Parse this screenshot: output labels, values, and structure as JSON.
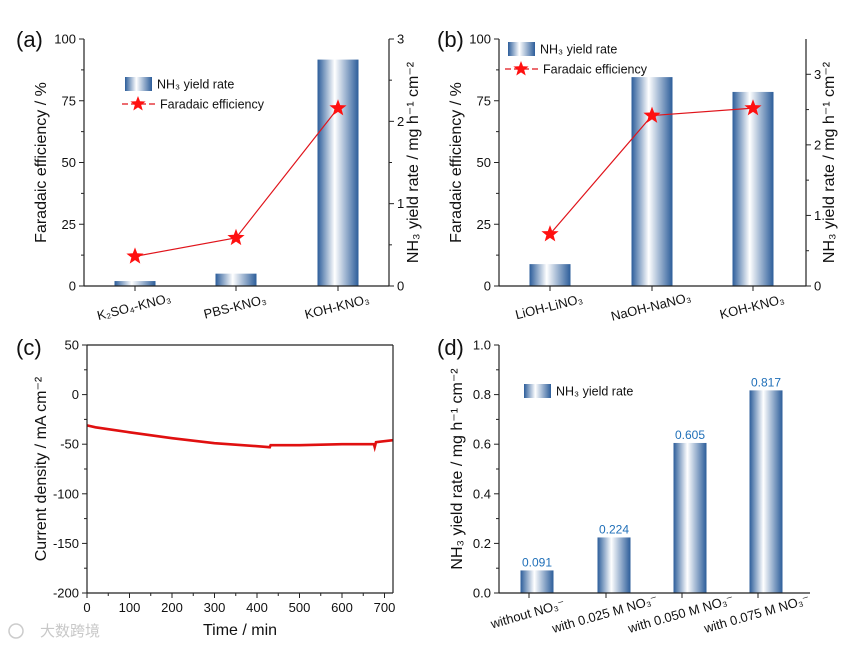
{
  "watermark": "大数跨境",
  "colors": {
    "bar_dark": "#2c5d9a",
    "bar_light": "#ffffff",
    "line": "#e0141b",
    "star": "#ff1010",
    "curve": "#e01010",
    "data_label": "#1f6fb8"
  },
  "chart_data": [
    {
      "panel": "(a)",
      "type": "bar+line",
      "categories": [
        "K₂SO₄-KNO₃",
        "PBS-KNO₃",
        "KOH-KNO₃"
      ],
      "bar_series": {
        "name": "NH₃ yield rate",
        "axis": "right",
        "values": [
          0.06,
          0.15,
          2.75
        ]
      },
      "line_series": {
        "name": "Faradaic efficiency",
        "axis": "left",
        "values": [
          12,
          19.5,
          72
        ]
      },
      "ylabel_left": "Faradaic efficiency / %",
      "ylabel_right": "NH₃ yield rate / mg h⁻¹ cm⁻²",
      "ylim_left": [
        0,
        100
      ],
      "yticks_left": [
        "0",
        "25",
        "50",
        "75",
        "100"
      ],
      "ylim_right": [
        0,
        3
      ],
      "yticks_right": [
        "0",
        "1",
        "2",
        "3"
      ],
      "legend": "top-left"
    },
    {
      "panel": "(b)",
      "type": "bar+line",
      "categories": [
        "LiOH-LiNO₃",
        "NaOH-NaNO₃",
        "KOH-KNO₃"
      ],
      "bar_series": {
        "name": "NH₃ yield rate",
        "axis": "right",
        "values": [
          0.31,
          2.96,
          2.75
        ]
      },
      "line_series": {
        "name": "Faradaic efficiency",
        "axis": "left",
        "values": [
          21,
          69,
          72
        ]
      },
      "ylabel_left": "Faradaic efficiency / %",
      "ylabel_right": "NH₃ yield rate / mg h⁻¹ cm⁻²",
      "ylim_left": [
        0,
        100
      ],
      "yticks_left": [
        "0",
        "25",
        "50",
        "75",
        "100"
      ],
      "ylim_right": [
        0,
        3.5
      ],
      "yticks_right": [
        "0",
        "1",
        "2",
        "3"
      ],
      "legend": "top-left"
    },
    {
      "panel": "(c)",
      "type": "line",
      "xlabel": "Time / min",
      "ylabel": "Current density / mA cm⁻²",
      "xlim": [
        0,
        720
      ],
      "xticks": [
        "0",
        "100",
        "200",
        "300",
        "400",
        "500",
        "600",
        "700"
      ],
      "ylim": [
        -200,
        50
      ],
      "yticks": [
        "-200",
        "-150",
        "-100",
        "-50",
        "0",
        "50"
      ],
      "x": [
        0,
        20,
        100,
        200,
        300,
        400,
        430,
        432,
        500,
        600,
        675,
        677,
        680,
        720
      ],
      "y": [
        -31,
        -33,
        -38,
        -44,
        -49,
        -52,
        -53,
        -51,
        -51,
        -50,
        -50,
        -53,
        -48,
        -46
      ]
    },
    {
      "panel": "(d)",
      "type": "bar",
      "categories": [
        "without NO₃⁻",
        "with 0.025 M NO₃⁻",
        "with 0.050 M NO₃⁻",
        "with 0.075 M NO₃⁻"
      ],
      "values": [
        0.091,
        0.224,
        0.605,
        0.817
      ],
      "data_labels": [
        "0.091",
        "0.224",
        "0.605",
        "0.817"
      ],
      "series_name": "NH₃ yield rate",
      "ylabel": "NH₃ yield rate / mg h⁻¹ cm⁻²",
      "ylim": [
        0,
        1.0
      ],
      "yticks": [
        "0.0",
        "0.2",
        "0.4",
        "0.6",
        "0.8",
        "1.0"
      ],
      "legend": "top-left"
    }
  ]
}
